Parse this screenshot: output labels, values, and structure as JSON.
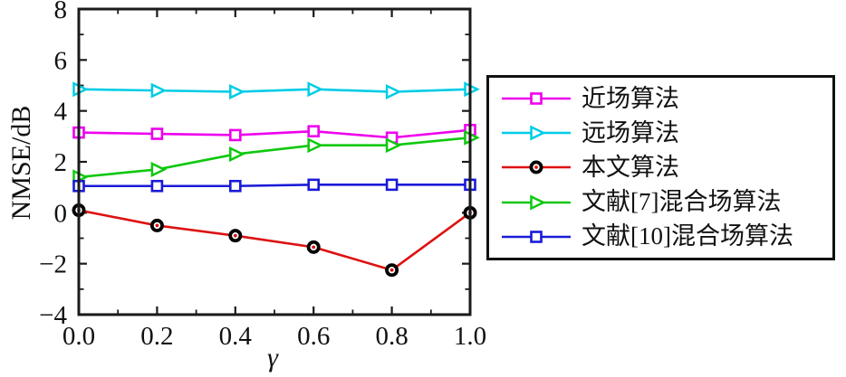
{
  "figure": {
    "ylabel": "NMSE/dB",
    "xlabel": "γ",
    "background": "#ffffff",
    "axis_color": "#1a1a1a",
    "text_color": "#111111"
  },
  "chart_data": {
    "type": "line",
    "title": "",
    "xlabel": "γ",
    "ylabel": "NMSE/dB",
    "xlim": [
      0,
      1
    ],
    "ylim": [
      -4,
      8
    ],
    "grid": false,
    "legend_position": "outside-right",
    "x": [
      0.0,
      0.2,
      0.4,
      0.6,
      0.8,
      1.0
    ],
    "x_tick_values": [
      0,
      0.2,
      0.4,
      0.6,
      0.8,
      1.0
    ],
    "x_tick_labels": [
      "0.0",
      "0.2",
      "0.4",
      "0.6",
      "0.8",
      "1.0"
    ],
    "x_minor_step": 0.1,
    "y_tick_values": [
      8,
      6,
      4,
      2,
      0,
      -2,
      -4
    ],
    "y_tick_labels": [
      "8",
      "6",
      "4",
      "2",
      "0",
      "−2",
      "−4"
    ],
    "y_minor_step": 1,
    "series": [
      {
        "name": "近场算法",
        "color": "#ee00ee",
        "marker": "square",
        "marker_edge": "#ee00ee",
        "values": [
          3.15,
          3.1,
          3.05,
          3.2,
          2.95,
          3.25
        ]
      },
      {
        "name": "远场算法",
        "color": "#00cce6",
        "marker": "triangle-right",
        "marker_edge": "#00cce6",
        "values": [
          4.85,
          4.8,
          4.75,
          4.85,
          4.75,
          4.85
        ]
      },
      {
        "name": "本文算法",
        "color": "#dd1111",
        "marker": "circle",
        "marker_edge": "#000000",
        "values": [
          0.1,
          -0.5,
          -0.9,
          -1.35,
          -2.25,
          0.0
        ]
      },
      {
        "name": "文献[7]混合场算法",
        "color": "#0fc80f",
        "marker": "triangle-right",
        "marker_edge": "#0fc80f",
        "values": [
          1.4,
          1.7,
          2.3,
          2.65,
          2.65,
          2.95
        ]
      },
      {
        "name": "文献[10]混合场算法",
        "color": "#1a1ad8",
        "marker": "square",
        "marker_edge": "#1a1ad8",
        "values": [
          1.05,
          1.05,
          1.05,
          1.1,
          1.1,
          1.1
        ]
      }
    ]
  }
}
